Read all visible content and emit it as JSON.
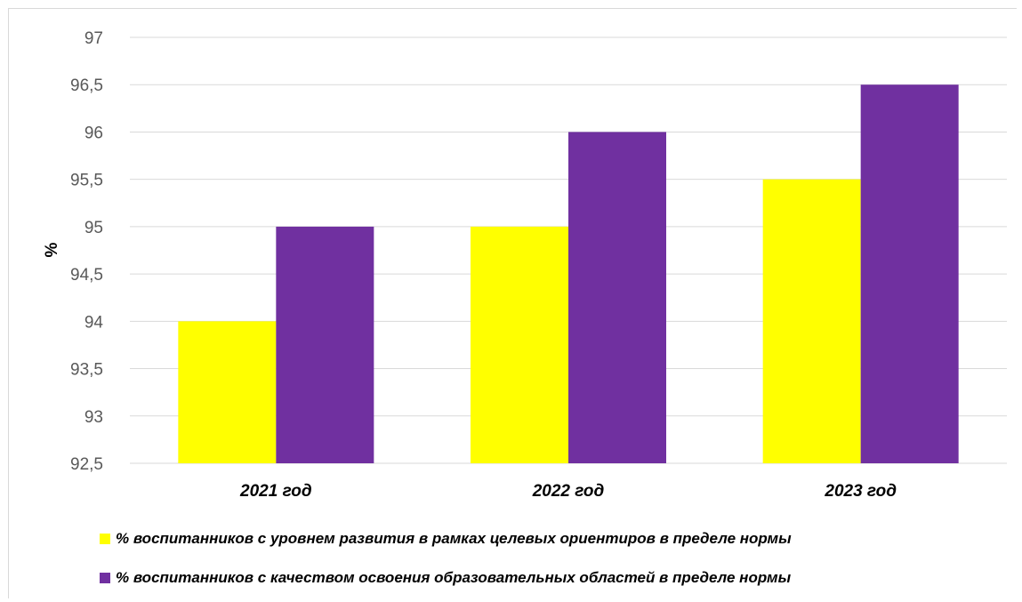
{
  "chart_data": {
    "type": "bar",
    "categories": [
      "2021 год",
      "2022 год",
      "2023 год"
    ],
    "series": [
      {
        "name": "% воспитанников с уровнем развития в рамках целевых ориентиров в пределе нормы",
        "values": [
          94,
          95,
          95.5
        ],
        "color": "#ffff00"
      },
      {
        "name": "% воспитанников с качеством освоения образовательных областей в пределе нормы",
        "values": [
          95,
          96,
          96.5
        ],
        "color": "#7030a0"
      }
    ],
    "ylabel": "%",
    "xlabel": "",
    "ylim": [
      92.5,
      97
    ],
    "yticks": [
      "92,5",
      "93",
      "93,5",
      "94",
      "94,5",
      "95",
      "95,5",
      "96",
      "96,5",
      "97"
    ],
    "ytick_values": [
      92.5,
      93,
      93.5,
      94,
      94.5,
      95,
      95.5,
      96,
      96.5,
      97
    ],
    "grid": true,
    "legend_position": "bottom"
  }
}
